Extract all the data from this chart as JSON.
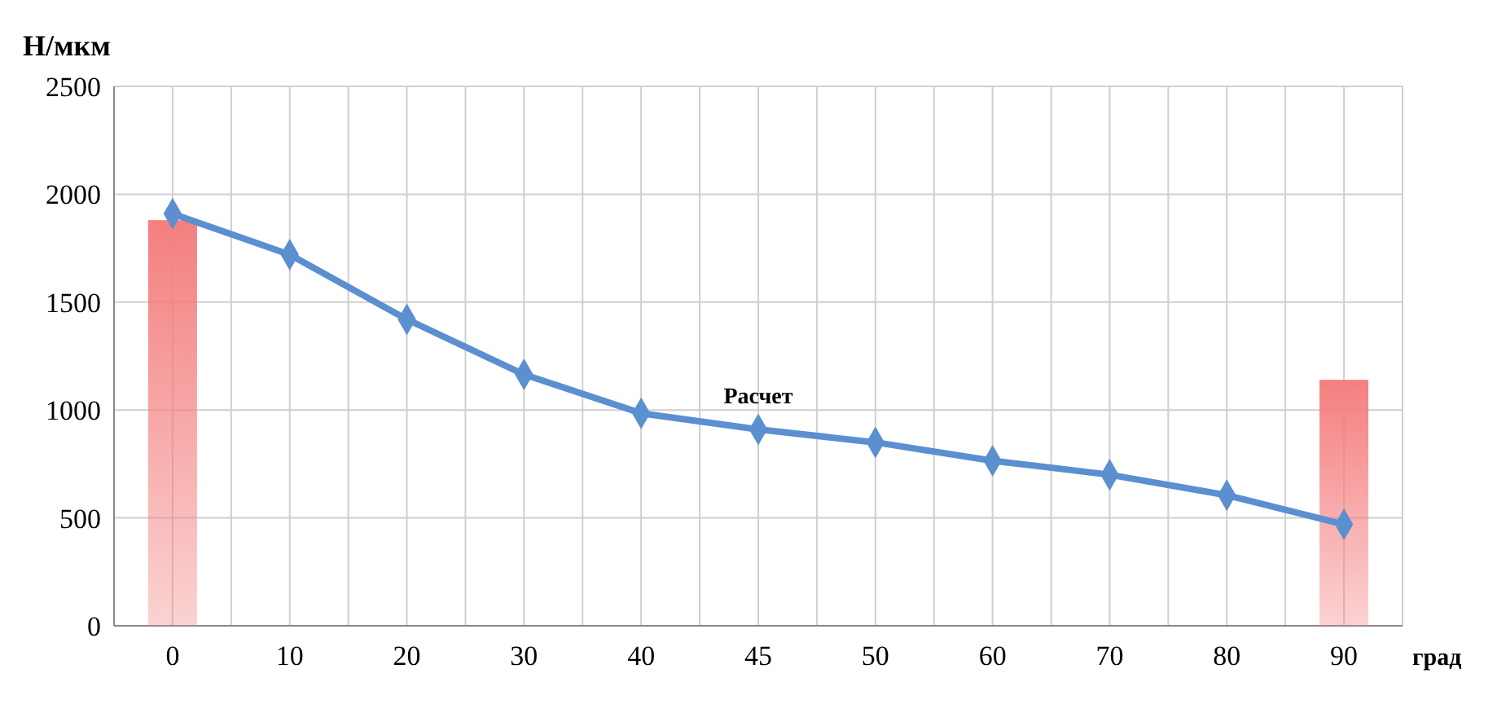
{
  "chart_data": {
    "type": "line",
    "ylabel": "Н/мкм",
    "xlabel": "град",
    "categories": [
      "0",
      "10",
      "20",
      "30",
      "40",
      "45",
      "50",
      "60",
      "70",
      "80",
      "90"
    ],
    "series": [
      {
        "type": "bar",
        "color": "#f47f7f",
        "values": [
          1880,
          null,
          null,
          null,
          null,
          null,
          null,
          null,
          null,
          null,
          1140
        ]
      },
      {
        "name": "Расчет",
        "color": "#5b8fd0",
        "values": [
          1910,
          1720,
          1420,
          1165,
          985,
          910,
          850,
          765,
          700,
          605,
          470
        ]
      }
    ],
    "ylim": [
      0,
      2500
    ],
    "yticks": [
      0,
      500,
      1000,
      1500,
      2000,
      2500
    ],
    "grid": true,
    "marker": "diamond",
    "line_style": "solid"
  }
}
